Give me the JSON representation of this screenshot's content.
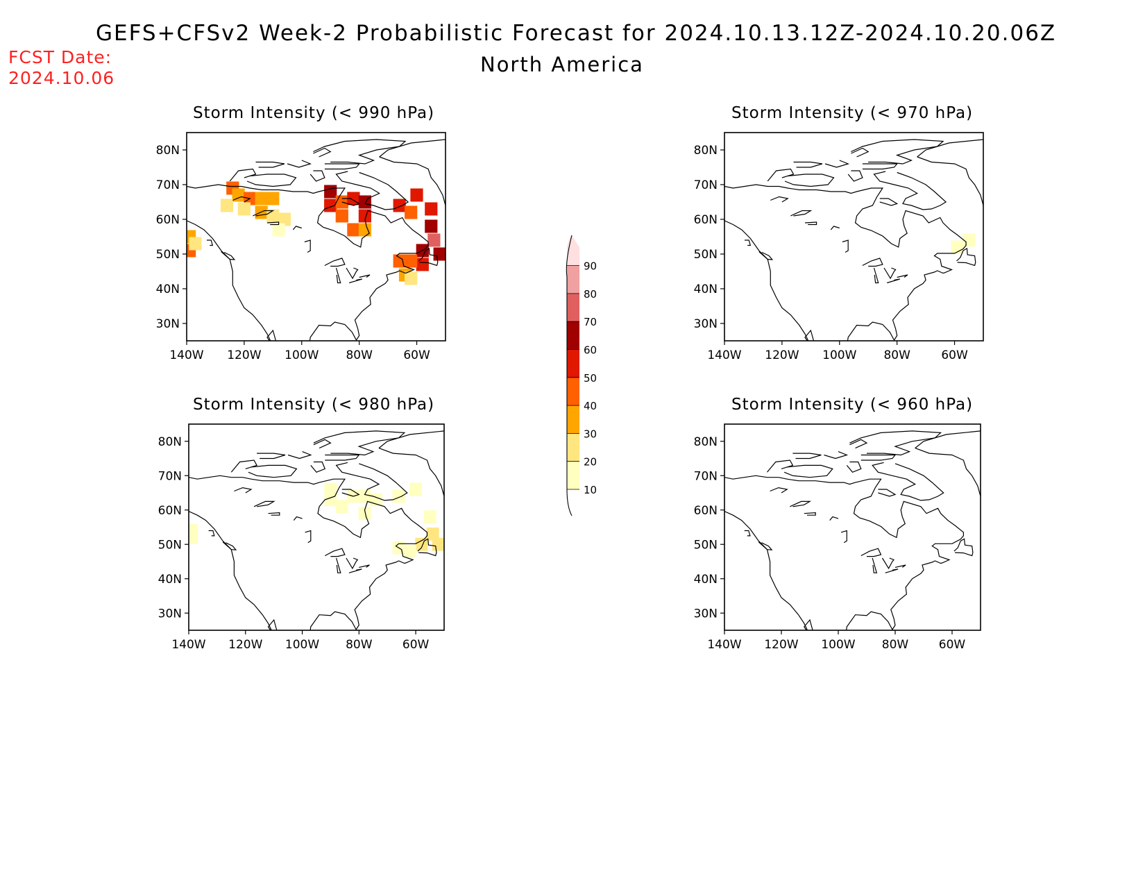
{
  "header": {
    "title": "GEFS+CFSv2 Week-2 Probabilistic Forecast for 2024.10.13.12Z-2024.10.20.06Z",
    "region": "North America",
    "fcst_date_label": "FCST Date:",
    "fcst_date_value": "2024.10.06"
  },
  "axes": {
    "lat_ticks": [
      "80N",
      "70N",
      "60N",
      "50N",
      "40N",
      "30N"
    ],
    "lon_ticks": [
      "140W",
      "120W",
      "100W",
      "80W",
      "60W"
    ]
  },
  "colorbar": {
    "levels": [
      "10",
      "20",
      "30",
      "40",
      "50",
      "60",
      "70",
      "80",
      "90"
    ],
    "colors": [
      "#ffffc0",
      "#ffe680",
      "#ffa500",
      "#ff6000",
      "#e01800",
      "#a00000",
      "#e06060",
      "#f0a0a0",
      "#ffe0e0"
    ]
  },
  "panels": [
    {
      "id": "p990",
      "title": "Storm Intensity (< 990 hPa)"
    },
    {
      "id": "p970",
      "title": "Storm Intensity (< 970 hPa)"
    },
    {
      "id": "p980",
      "title": "Storm Intensity (< 980 hPa)"
    },
    {
      "id": "p960",
      "title": "Storm Intensity (< 960 hPa)"
    }
  ],
  "chart_data": {
    "type": "heatmap",
    "x_range": [
      -140,
      -50
    ],
    "y_range": [
      25,
      85
    ],
    "units": "probability (%)",
    "panels": [
      {
        "title": "Storm Intensity (< 990 hPa)",
        "cells": [
          {
            "lon": -139,
            "lat": 55,
            "p": 35
          },
          {
            "lon": -139,
            "lat": 51,
            "p": 45
          },
          {
            "lon": -137,
            "lat": 53,
            "p": 20
          },
          {
            "lon": -124,
            "lat": 69,
            "p": 40
          },
          {
            "lon": -122,
            "lat": 67,
            "p": 30
          },
          {
            "lon": -118,
            "lat": 66,
            "p": 40
          },
          {
            "lon": -114,
            "lat": 66,
            "p": 35
          },
          {
            "lon": -110,
            "lat": 66,
            "p": 30
          },
          {
            "lon": -126,
            "lat": 64,
            "p": 20
          },
          {
            "lon": -120,
            "lat": 63,
            "p": 25
          },
          {
            "lon": -114,
            "lat": 62,
            "p": 30
          },
          {
            "lon": -110,
            "lat": 61,
            "p": 20
          },
          {
            "lon": -106,
            "lat": 60,
            "p": 25
          },
          {
            "lon": -108,
            "lat": 57,
            "p": 15
          },
          {
            "lon": -90,
            "lat": 68,
            "p": 60
          },
          {
            "lon": -90,
            "lat": 64,
            "p": 55
          },
          {
            "lon": -86,
            "lat": 65,
            "p": 45
          },
          {
            "lon": -86,
            "lat": 61,
            "p": 40
          },
          {
            "lon": -82,
            "lat": 66,
            "p": 55
          },
          {
            "lon": -78,
            "lat": 65,
            "p": 60
          },
          {
            "lon": -78,
            "lat": 61,
            "p": 50
          },
          {
            "lon": -82,
            "lat": 57,
            "p": 40
          },
          {
            "lon": -78,
            "lat": 57,
            "p": 35
          },
          {
            "lon": -66,
            "lat": 64,
            "p": 55
          },
          {
            "lon": -62,
            "lat": 62,
            "p": 45
          },
          {
            "lon": -60,
            "lat": 67,
            "p": 55
          },
          {
            "lon": -55,
            "lat": 63,
            "p": 55
          },
          {
            "lon": -55,
            "lat": 58,
            "p": 60
          },
          {
            "lon": -54,
            "lat": 54,
            "p": 75
          },
          {
            "lon": -52,
            "lat": 50,
            "p": 65
          },
          {
            "lon": -58,
            "lat": 51,
            "p": 60
          },
          {
            "lon": -58,
            "lat": 47,
            "p": 50
          },
          {
            "lon": -62,
            "lat": 48,
            "p": 45
          },
          {
            "lon": -66,
            "lat": 48,
            "p": 40
          },
          {
            "lon": -64,
            "lat": 44,
            "p": 30
          },
          {
            "lon": -62,
            "lat": 43,
            "p": 20
          }
        ]
      },
      {
        "title": "Storm Intensity (< 970 hPa)",
        "cells": [
          {
            "lon": -55,
            "lat": 54,
            "p": 15
          },
          {
            "lon": -59,
            "lat": 52,
            "p": 10
          }
        ]
      },
      {
        "title": "Storm Intensity (< 980 hPa)",
        "cells": [
          {
            "lon": -139,
            "lat": 54,
            "p": 15
          },
          {
            "lon": -139,
            "lat": 52,
            "p": 10
          },
          {
            "lon": -90,
            "lat": 66,
            "p": 10
          },
          {
            "lon": -90,
            "lat": 63,
            "p": 15
          },
          {
            "lon": -86,
            "lat": 61,
            "p": 10
          },
          {
            "lon": -82,
            "lat": 64,
            "p": 15
          },
          {
            "lon": -78,
            "lat": 64,
            "p": 10
          },
          {
            "lon": -74,
            "lat": 63,
            "p": 10
          },
          {
            "lon": -66,
            "lat": 64,
            "p": 10
          },
          {
            "lon": -78,
            "lat": 59,
            "p": 10
          },
          {
            "lon": -60,
            "lat": 66,
            "p": 10
          },
          {
            "lon": -55,
            "lat": 58,
            "p": 15
          },
          {
            "lon": -54,
            "lat": 53,
            "p": 25
          },
          {
            "lon": -52,
            "lat": 50,
            "p": 20
          },
          {
            "lon": -58,
            "lat": 50,
            "p": 20
          },
          {
            "lon": -62,
            "lat": 48,
            "p": 15
          },
          {
            "lon": -66,
            "lat": 49,
            "p": 10
          }
        ]
      },
      {
        "title": "Storm Intensity (< 960 hPa)",
        "cells": []
      }
    ]
  }
}
